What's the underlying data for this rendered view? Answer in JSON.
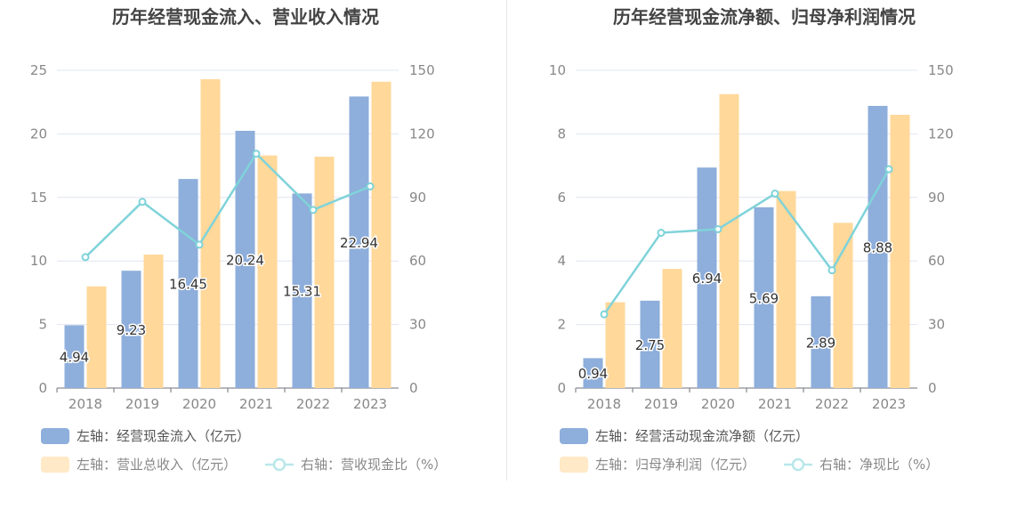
{
  "colors": {
    "bar_left": "#8eaedb",
    "bar_right": "#ffd89a",
    "line": "#7fd3d9",
    "axis_text": "#888888",
    "grid": "#e0e6f1",
    "title": "#444444"
  },
  "chart_data": [
    {
      "type": "bar",
      "title": "历年经营现金流入、营业收入情况",
      "categories": [
        "2018",
        "2019",
        "2020",
        "2021",
        "2022",
        "2023"
      ],
      "y_left": {
        "min": 0,
        "max": 25,
        "ticks": [
          "0",
          "5",
          "10",
          "15",
          "20",
          "25"
        ]
      },
      "y_right": {
        "min": 0,
        "max": 150,
        "ticks": [
          "0",
          "30",
          "60",
          "90",
          "120",
          "150"
        ]
      },
      "series": [
        {
          "name": "左轴：经营现金流入（亿元）",
          "type": "bar",
          "axis": "left",
          "values": [
            4.94,
            9.23,
            16.45,
            20.24,
            15.31,
            22.94
          ],
          "labels": [
            "4.94",
            "9.23",
            "16.45",
            "20.24",
            "15.31",
            "22.94"
          ]
        },
        {
          "name": "左轴：营业总收入（亿元）",
          "type": "bar",
          "axis": "left",
          "values": [
            8.0,
            10.5,
            24.3,
            18.3,
            18.2,
            24.1
          ]
        },
        {
          "name": "右轴：营收现金比（%）",
          "type": "line",
          "axis": "right",
          "values": [
            61.8,
            87.9,
            67.7,
            110.6,
            84.1,
            95.2
          ]
        }
      ]
    },
    {
      "type": "bar",
      "title": "历年经营现金流净额、归母净利润情况",
      "categories": [
        "2018",
        "2019",
        "2020",
        "2021",
        "2022",
        "2023"
      ],
      "y_left": {
        "min": 0,
        "max": 10,
        "ticks": [
          "0",
          "2",
          "4",
          "6",
          "8",
          "10"
        ]
      },
      "y_right": {
        "min": 0,
        "max": 150,
        "ticks": [
          "0",
          "30",
          "60",
          "90",
          "120",
          "150"
        ]
      },
      "series": [
        {
          "name": "左轴：经营活动现金流净额（亿元）",
          "type": "bar",
          "axis": "left",
          "values": [
            0.94,
            2.75,
            6.94,
            5.69,
            2.89,
            8.88
          ],
          "labels": [
            "0.94",
            "2.75",
            "6.94",
            "5.69",
            "2.89",
            "8.88"
          ]
        },
        {
          "name": "左轴：归母净利润（亿元）",
          "type": "bar",
          "axis": "left",
          "values": [
            2.7,
            3.75,
            9.25,
            6.2,
            5.2,
            8.6
          ]
        },
        {
          "name": "右轴：净现比（%）",
          "type": "line",
          "axis": "right",
          "values": [
            34.8,
            73.3,
            75.0,
            91.8,
            55.6,
            103.3
          ]
        }
      ]
    }
  ]
}
